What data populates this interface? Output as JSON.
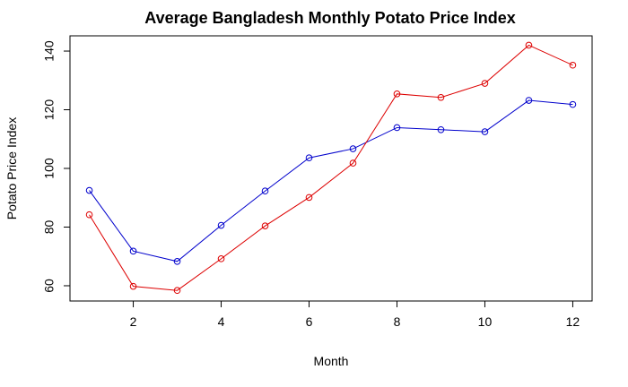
{
  "chart_data": {
    "type": "line",
    "title": "Average Bangladesh Monthly Potato Price Index",
    "xlabel": "Month",
    "ylabel": "Potato Price Index",
    "x": [
      1,
      2,
      3,
      4,
      5,
      6,
      7,
      8,
      9,
      10,
      11,
      12
    ],
    "xlim": [
      0.56,
      12.44
    ],
    "ylim": [
      54.8,
      145.2
    ],
    "x_ticks": [
      2,
      4,
      6,
      8,
      10,
      12
    ],
    "y_ticks": [
      60,
      80,
      100,
      120,
      140
    ],
    "grid": false,
    "markers": "open-circle",
    "series": [
      {
        "color": "#0000cc",
        "values": [
          92.5,
          71.8,
          68.3,
          80.6,
          92.3,
          103.6,
          106.7,
          113.9,
          113.2,
          112.5,
          123.2,
          121.8
        ]
      },
      {
        "color": "#dd0000",
        "values": [
          84.2,
          59.8,
          58.4,
          69.2,
          80.4,
          90.1,
          101.8,
          125.4,
          124.2,
          129.0,
          142.0,
          135.2
        ]
      }
    ]
  }
}
